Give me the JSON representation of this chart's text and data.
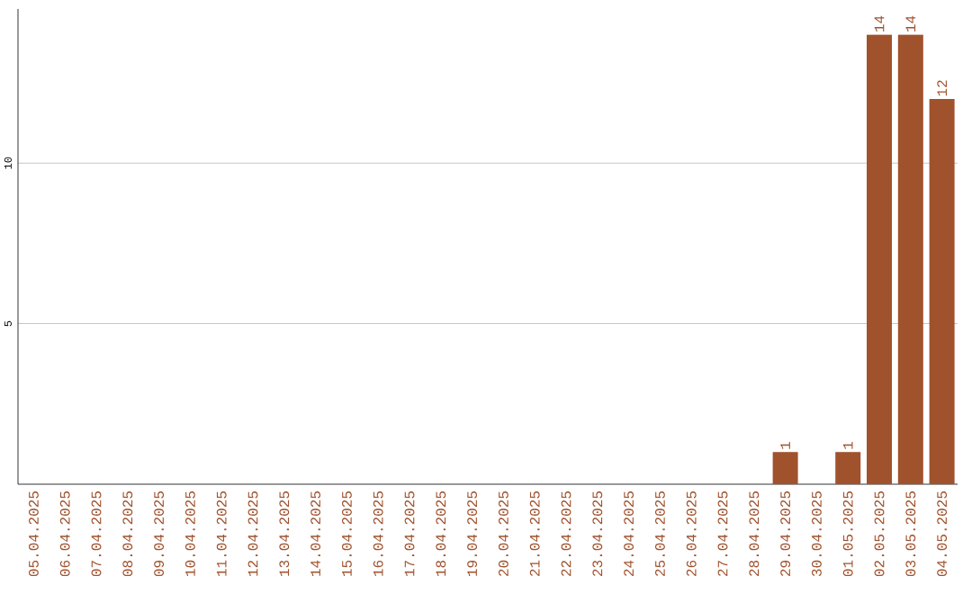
{
  "chart_data": {
    "type": "bar",
    "categories": [
      "05.04.2025",
      "06.04.2025",
      "07.04.2025",
      "08.04.2025",
      "09.04.2025",
      "10.04.2025",
      "11.04.2025",
      "12.04.2025",
      "13.04.2025",
      "14.04.2025",
      "15.04.2025",
      "16.04.2025",
      "17.04.2025",
      "18.04.2025",
      "19.04.2025",
      "20.04.2025",
      "21.04.2025",
      "22.04.2025",
      "23.04.2025",
      "24.04.2025",
      "25.04.2025",
      "26.04.2025",
      "27.04.2025",
      "28.04.2025",
      "29.04.2025",
      "30.04.2025",
      "01.05.2025",
      "02.05.2025",
      "03.05.2025",
      "04.05.2025"
    ],
    "values": [
      0,
      0,
      0,
      0,
      0,
      0,
      0,
      0,
      0,
      0,
      0,
      0,
      0,
      0,
      0,
      0,
      0,
      0,
      0,
      0,
      0,
      0,
      0,
      0,
      1,
      0,
      1,
      14,
      14,
      12
    ],
    "value_labels": [
      null,
      null,
      null,
      null,
      null,
      null,
      null,
      null,
      null,
      null,
      null,
      null,
      null,
      null,
      null,
      null,
      null,
      null,
      null,
      null,
      null,
      null,
      null,
      null,
      "1",
      null,
      "1",
      "14",
      "14",
      "12"
    ],
    "color": "#a0522d",
    "ylim": [
      0,
      14.8
    ],
    "yticks": [
      5,
      10
    ],
    "grid": "y"
  }
}
